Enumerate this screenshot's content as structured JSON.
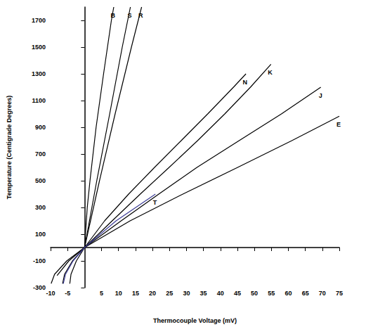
{
  "chart_data": {
    "type": "line",
    "x_label": "Thermocouple Voltage (mV)",
    "y_label": "Temperature (Centigrade Degrees)",
    "xlim": [
      -10,
      75
    ],
    "xticks": [
      -10,
      -5,
      5,
      10,
      15,
      20,
      25,
      30,
      35,
      40,
      45,
      50,
      55,
      60,
      65,
      70,
      75
    ],
    "ylim": [
      -300,
      1800
    ],
    "yticks": [
      -300,
      -100,
      100,
      300,
      500,
      700,
      900,
      1100,
      1300,
      1500,
      1700
    ],
    "grid": false,
    "series": [
      {
        "name": "B",
        "color": "#000000",
        "x": [
          0,
          0.8,
          1.6,
          3.4,
          5.6,
          7.9,
          8.6
        ],
        "values": [
          0,
          300,
          500,
          900,
          1300,
          1700,
          1800
        ]
      },
      {
        "name": "S",
        "color": "#000000",
        "x": [
          0,
          3.6,
          7.4,
          11.1,
          13.5
        ],
        "values": [
          0,
          500,
          1000,
          1500,
          1800
        ]
      },
      {
        "name": "R",
        "color": "#000000",
        "x": [
          0,
          4.4,
          9.0,
          13.8,
          16.8
        ],
        "values": [
          0,
          500,
          1000,
          1500,
          1800
        ]
      },
      {
        "name": "N",
        "color": "#000000",
        "x": [
          -4.345,
          -3.99,
          -2.407,
          0,
          5.913,
          12.974,
          20.613,
          28.455,
          36.256,
          43.846,
          47.513
        ],
        "values": [
          -270,
          -200,
          -100,
          0,
          200,
          400,
          600,
          800,
          1000,
          1200,
          1300
        ]
      },
      {
        "name": "K",
        "color": "#000000",
        "x": [
          -6.458,
          -5.891,
          -3.554,
          0,
          8.138,
          16.397,
          24.905,
          33.275,
          41.276,
          48.838,
          54.886
        ],
        "values": [
          -270,
          -200,
          -100,
          0,
          200,
          400,
          600,
          800,
          1000,
          1200,
          1372
        ]
      },
      {
        "name": "J",
        "color": "#000000",
        "x": [
          -8.095,
          -4.633,
          0,
          10.779,
          21.848,
          33.102,
          45.494,
          57.953,
          69.553
        ],
        "values": [
          -210,
          -100,
          0,
          200,
          400,
          600,
          800,
          1000,
          1200
        ]
      },
      {
        "name": "E",
        "color": "#000000",
        "x": [
          -9.835,
          -8.825,
          -5.237,
          0,
          13.421,
          28.946,
          45.093,
          61.017,
          75.0
        ],
        "values": [
          -270,
          -200,
          -100,
          0,
          200,
          400,
          600,
          800,
          983
        ]
      },
      {
        "name": "T",
        "color": "#3c3c96",
        "x": [
          -6.258,
          -5.603,
          -3.379,
          0,
          9.288,
          20.872
        ],
        "values": [
          -270,
          -200,
          -100,
          0,
          200,
          400
        ]
      }
    ]
  }
}
